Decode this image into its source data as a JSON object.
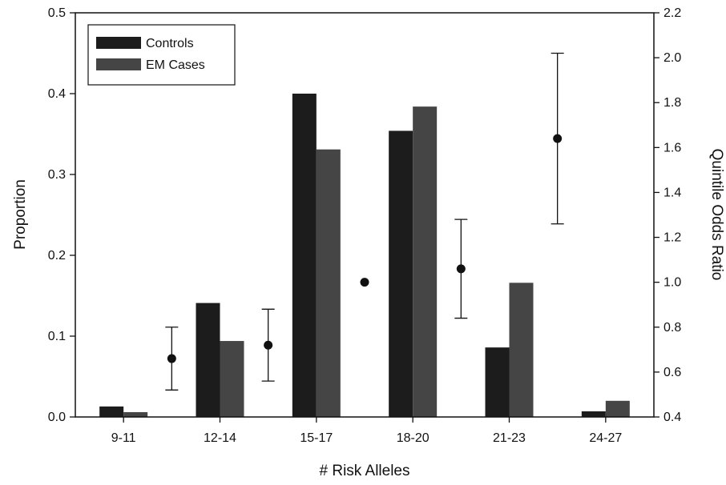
{
  "chart_data": {
    "type": "bar",
    "xlabel": "# Risk Alleles",
    "ylabel": "Proportion",
    "y2label": "Quintile Odds Ratio",
    "categories": [
      "9-11",
      "12-14",
      "15-17",
      "18-20",
      "21-23",
      "24-27"
    ],
    "ylim": [
      0.0,
      0.5
    ],
    "yticks": [
      "0.0",
      "0.1",
      "0.2",
      "0.3",
      "0.4",
      "0.5"
    ],
    "y2lim": [
      0.4,
      2.2
    ],
    "y2ticks": [
      "0.4",
      "0.6",
      "0.8",
      "1.0",
      "1.2",
      "1.4",
      "1.6",
      "1.8",
      "2.0",
      "2.2"
    ],
    "series": [
      {
        "name": "Controls",
        "color": "#1c1c1c",
        "values": [
          0.013,
          0.141,
          0.4,
          0.354,
          0.086,
          0.007
        ]
      },
      {
        "name": "EM Cases",
        "color": "#454545",
        "values": [
          0.006,
          0.094,
          0.331,
          0.384,
          0.166,
          0.02
        ]
      }
    ],
    "odds_ratio": {
      "points": [
        {
          "x": "9-11/12-14",
          "or": 0.66,
          "low": 0.52,
          "high": 0.8
        },
        {
          "x": "12-14/15-17",
          "or": 0.72,
          "low": 0.56,
          "high": 0.88
        },
        {
          "x": "15-17/18-20",
          "or": 1.0,
          "low": null,
          "high": null
        },
        {
          "x": "18-20/21-23",
          "or": 1.06,
          "low": 0.84,
          "high": 1.28
        },
        {
          "x": "21-23/24-27",
          "or": 1.64,
          "low": 1.26,
          "high": 2.02
        }
      ]
    },
    "legend_position": "top-left",
    "grid": false
  }
}
